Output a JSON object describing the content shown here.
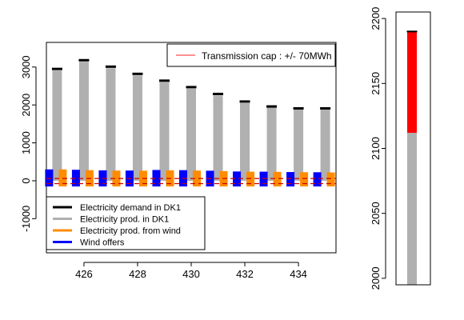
{
  "chart_data": [
    {
      "type": "bar",
      "title": "",
      "xlabel": "",
      "ylabel": "",
      "x": [
        425,
        426,
        427,
        428,
        429,
        430,
        431,
        432,
        433,
        434,
        435
      ],
      "xlim": [
        424.6,
        435.4
      ],
      "ylim": [
        -1900,
        3650
      ],
      "xticks": [
        426,
        428,
        430,
        432,
        434
      ],
      "yticks": [
        -1000,
        0,
        1000,
        2000,
        3000
      ],
      "xtick_labels": [
        "426",
        "428",
        "430",
        "432",
        "434"
      ],
      "ytick_labels": [
        "-1000",
        "0",
        "1000",
        "2000",
        "3000"
      ],
      "series": [
        {
          "name": "Electricity demand in DK1",
          "color": "#000000",
          "values": [
            2950,
            3180,
            3010,
            2820,
            2640,
            2470,
            2290,
            2090,
            1960,
            1910,
            1910
          ]
        },
        {
          "name": "Electricity prod. in DK1",
          "color": "#b0b0b0",
          "values": [
            2910,
            3140,
            2970,
            2780,
            2600,
            2430,
            2250,
            2050,
            1930,
            1880,
            1880
          ]
        },
        {
          "name": "Electricity prod. from wind",
          "color": "#ff8c00",
          "values": [
            300,
            280,
            270,
            265,
            275,
            270,
            255,
            240,
            235,
            225,
            220
          ],
          "lower": [
            -150,
            -150,
            -150,
            -150,
            -150,
            -150,
            -150,
            -150,
            -150,
            -150,
            -150
          ]
        },
        {
          "name": "Wind offers",
          "color": "#0000ff",
          "values": [
            300,
            290,
            275,
            270,
            285,
            280,
            265,
            245,
            240,
            230,
            225
          ],
          "lower": [
            -150,
            -150,
            -150,
            -150,
            -150,
            -150,
            -150,
            -150,
            -150,
            -150,
            -150
          ]
        }
      ],
      "reference_lines": [
        {
          "name": "Transmission cap : +/- 70MWh",
          "color": "#ff4444",
          "values": [
            70,
            -70
          ]
        },
        {
          "name": "",
          "color": "#cc0000",
          "style": "dashed",
          "values": [
            60,
            -75
          ]
        }
      ],
      "legend_top": {
        "text": "Transmission cap : +/- 70MWh",
        "color": "#ff6b6b",
        "position": "top-right"
      },
      "legend_bottom": {
        "position": "bottom-left",
        "entries": [
          {
            "text": "Electricity demand in DK1",
            "color": "#000000"
          },
          {
            "text": "Electricity prod. in DK1",
            "color": "#b0b0b0"
          },
          {
            "text": "Electricity prod. from wind",
            "color": "#ff8c00"
          },
          {
            "text": "Wind offers",
            "color": "#0000ff"
          }
        ]
      }
    },
    {
      "type": "bar",
      "title": "",
      "xlabel": "",
      "ylabel": "",
      "ylim": [
        1995,
        2205
      ],
      "yticks": [
        2000,
        2050,
        2100,
        2150,
        2200
      ],
      "ytick_labels": [
        "2000",
        "2050",
        "2100",
        "2150",
        "2200"
      ],
      "stack": [
        {
          "name": "",
          "color": "#b0b0b0",
          "from": 1995,
          "to": 2112
        },
        {
          "name": "",
          "color": "#ff0000",
          "from": 2112,
          "to": 2190
        }
      ],
      "top_line": {
        "value": 2190,
        "color": "#000000"
      }
    }
  ]
}
